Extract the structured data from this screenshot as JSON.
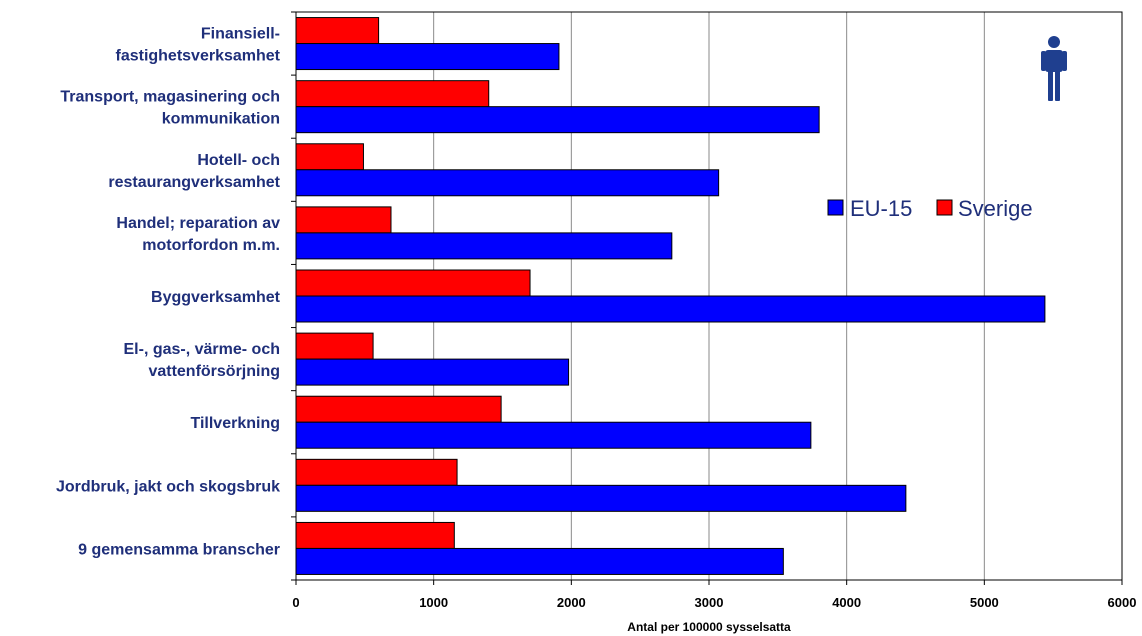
{
  "chart_data": {
    "type": "bar",
    "orientation": "horizontal",
    "categories": [
      [
        "Finansiell-",
        "fastighetsverksamhet"
      ],
      [
        "Transport, magasinering och",
        "kommunikation"
      ],
      [
        "Hotell- och",
        "restaurangverksamhet"
      ],
      [
        "Handel; reparation av",
        "motorfordon m.m."
      ],
      [
        "Byggverksamhet"
      ],
      [
        "El-, gas-, värme- och",
        "vattenförsörjning"
      ],
      [
        "Tillverkning"
      ],
      [
        "Jordbruk, jakt och skogsbruk"
      ],
      [
        "9 gemensamma branscher"
      ]
    ],
    "series": [
      {
        "name": "Sverige",
        "color": "#ff0000",
        "values": [
          600,
          1400,
          490,
          690,
          1700,
          560,
          1490,
          1170,
          1150
        ]
      },
      {
        "name": "EU-15",
        "color": "#0000ff",
        "values": [
          1910,
          3800,
          3070,
          2730,
          5440,
          1980,
          3740,
          4430,
          3540
        ]
      }
    ],
    "xlim": [
      0,
      6000
    ],
    "xticks": [
      "0",
      "1000",
      "2000",
      "3000",
      "4000",
      "5000",
      "6000"
    ],
    "xlabel": "Antal per 100000 sysselsatta",
    "ylabel": "",
    "title": "",
    "grid": "vertical",
    "legend": {
      "placement": "right",
      "entries": [
        {
          "name": "EU-15",
          "color": "#0000ff"
        },
        {
          "name": "Sverige",
          "color": "#ff0000"
        }
      ]
    },
    "icon": "male-person-icon",
    "label_color": "#1f2f7a"
  }
}
